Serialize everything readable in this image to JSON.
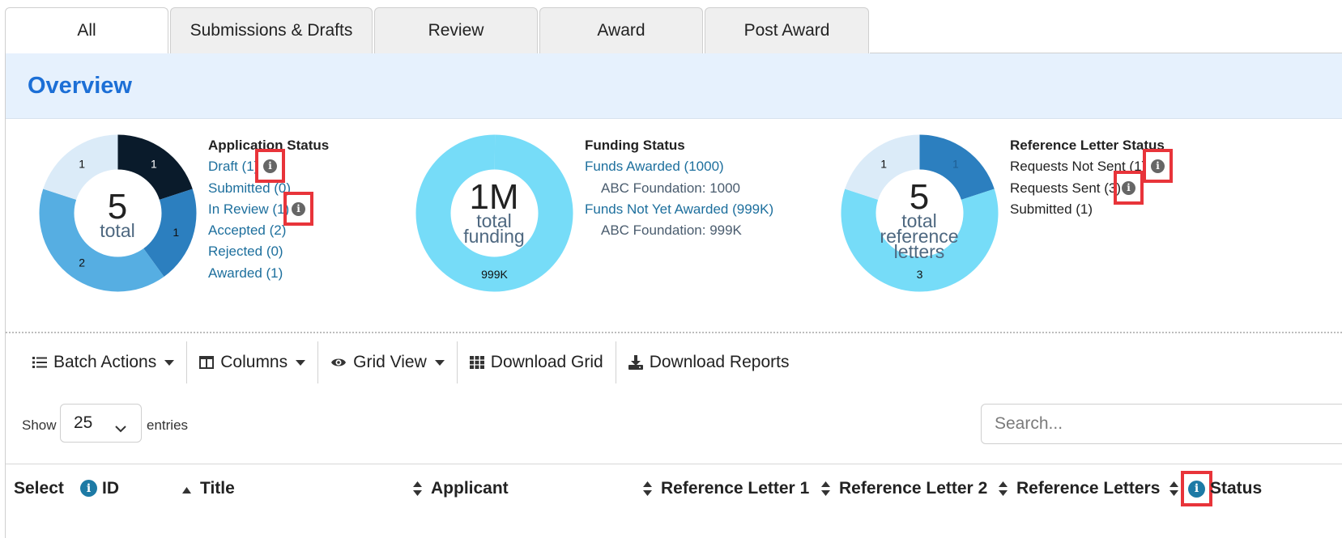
{
  "tabs": [
    {
      "label": "All",
      "active": true
    },
    {
      "label": "Submissions & Drafts",
      "active": false
    },
    {
      "label": "Review",
      "active": false
    },
    {
      "label": "Award",
      "active": false
    },
    {
      "label": "Post Award",
      "active": false
    }
  ],
  "overview": {
    "title": "Overview"
  },
  "application_status": {
    "heading": "Application Status",
    "total": "5",
    "total_label": "total",
    "items": [
      "Draft (1)",
      "Submitted (0)",
      "In Review (1)",
      "Accepted (2)",
      "Rejected (0)",
      "Awarded (1)"
    ],
    "segments": [
      {
        "label": "1",
        "value": 1,
        "color": "#0a1b2b"
      },
      {
        "label": "1",
        "value": 1,
        "color": "#2c7fbf"
      },
      {
        "label": "2",
        "value": 2,
        "color": "#56aee2"
      },
      {
        "label": "1",
        "value": 1,
        "color": "#dbebf8"
      }
    ]
  },
  "funding_status": {
    "heading": "Funding Status",
    "total": "1M",
    "total_label_1": "total",
    "total_label_2": "funding",
    "awarded": "Funds Awarded (1000)",
    "awarded_sub": "ABC Foundation: 1000",
    "not_awarded": "Funds Not Yet Awarded (999K)",
    "not_awarded_sub": "ABC Foundation: 999K",
    "segments": [
      {
        "label": "1000",
        "value": 1000,
        "color": "#76dcf8"
      },
      {
        "label": "999K",
        "value": 999000,
        "color": "#76dcf8"
      }
    ]
  },
  "reference_status": {
    "heading": "Reference Letter Status",
    "total": "5",
    "total_label_1": "total",
    "total_label_2": "reference",
    "total_label_3": "letters",
    "items": [
      "Requests Not Sent (1)",
      "Requests Sent (3)",
      "Submitted (1)"
    ],
    "segments": [
      {
        "label": "1",
        "value": 1,
        "color": "#2c7fbf"
      },
      {
        "label": "3",
        "value": 3,
        "color": "#76dcf8"
      },
      {
        "label": "1",
        "value": 1,
        "color": "#dbebf8"
      }
    ]
  },
  "toolbar": {
    "batch": "Batch Actions",
    "columns": "Columns",
    "grid": "Grid View",
    "download_grid": "Download Grid",
    "download_reports": "Download Reports"
  },
  "entries": {
    "show": "Show",
    "value": "25",
    "suffix": "entries"
  },
  "search": {
    "placeholder": "Search..."
  },
  "table": {
    "headers": [
      "Select",
      "ID",
      "Title",
      "Applicant",
      "Reference Letter 1",
      "Reference Letter 2",
      "Reference Letters",
      "Status"
    ]
  }
}
